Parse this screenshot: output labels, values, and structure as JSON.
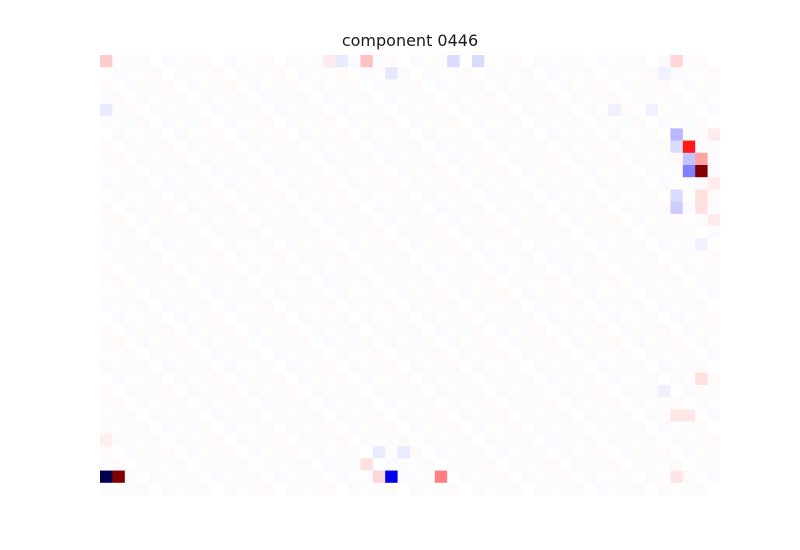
{
  "chart_data": {
    "type": "heatmap",
    "title": "component 0446",
    "n_rows": 36,
    "n_cols": 50,
    "vmin": -1,
    "vmax": 1,
    "colormap": "seismic",
    "axes_visible": false,
    "grid": false,
    "cells": [
      {
        "row": 0,
        "col": 0,
        "value": 0.1
      },
      {
        "row": 0,
        "col": 19,
        "value": -0.04
      },
      {
        "row": 0,
        "col": 18,
        "value": 0.04
      },
      {
        "row": 0,
        "col": 21,
        "value": 0.12
      },
      {
        "row": 0,
        "col": 28,
        "value": -0.07
      },
      {
        "row": 0,
        "col": 30,
        "value": -0.07
      },
      {
        "row": 0,
        "col": 46,
        "value": 0.08
      },
      {
        "row": 1,
        "col": 23,
        "value": -0.05
      },
      {
        "row": 1,
        "col": 45,
        "value": -0.03
      },
      {
        "row": 4,
        "col": 0,
        "value": -0.04
      },
      {
        "row": 4,
        "col": 41,
        "value": -0.03
      },
      {
        "row": 4,
        "col": 44,
        "value": -0.03
      },
      {
        "row": 6,
        "col": 46,
        "value": -0.14
      },
      {
        "row": 6,
        "col": 49,
        "value": 0.04
      },
      {
        "row": 7,
        "col": 46,
        "value": -0.07
      },
      {
        "row": 7,
        "col": 47,
        "value": 0.45
      },
      {
        "row": 8,
        "col": 47,
        "value": -0.12
      },
      {
        "row": 8,
        "col": 48,
        "value": 0.18
      },
      {
        "row": 9,
        "col": 47,
        "value": -0.25
      },
      {
        "row": 9,
        "col": 48,
        "value": 1.0
      },
      {
        "row": 10,
        "col": 49,
        "value": 0.04
      },
      {
        "row": 11,
        "col": 46,
        "value": -0.07
      },
      {
        "row": 11,
        "col": 48,
        "value": 0.06
      },
      {
        "row": 12,
        "col": 46,
        "value": -0.1
      },
      {
        "row": 12,
        "col": 48,
        "value": 0.06
      },
      {
        "row": 13,
        "col": 49,
        "value": 0.04
      },
      {
        "row": 15,
        "col": 48,
        "value": -0.03
      },
      {
        "row": 27,
        "col": 45,
        "value": -0.03
      },
      {
        "row": 26,
        "col": 48,
        "value": 0.06
      },
      {
        "row": 29,
        "col": 46,
        "value": 0.05
      },
      {
        "row": 29,
        "col": 47,
        "value": 0.05
      },
      {
        "row": 31,
        "col": 0,
        "value": 0.03
      },
      {
        "row": 32,
        "col": 22,
        "value": -0.04
      },
      {
        "row": 32,
        "col": 24,
        "value": -0.04
      },
      {
        "row": 33,
        "col": 21,
        "value": 0.06
      },
      {
        "row": 34,
        "col": 0,
        "value": -1.0
      },
      {
        "row": 34,
        "col": 1,
        "value": 1.0
      },
      {
        "row": 34,
        "col": 22,
        "value": 0.08
      },
      {
        "row": 34,
        "col": 23,
        "value": -0.55
      },
      {
        "row": 34,
        "col": 27,
        "value": 0.25
      },
      {
        "row": 34,
        "col": 46,
        "value": 0.05
      }
    ]
  }
}
